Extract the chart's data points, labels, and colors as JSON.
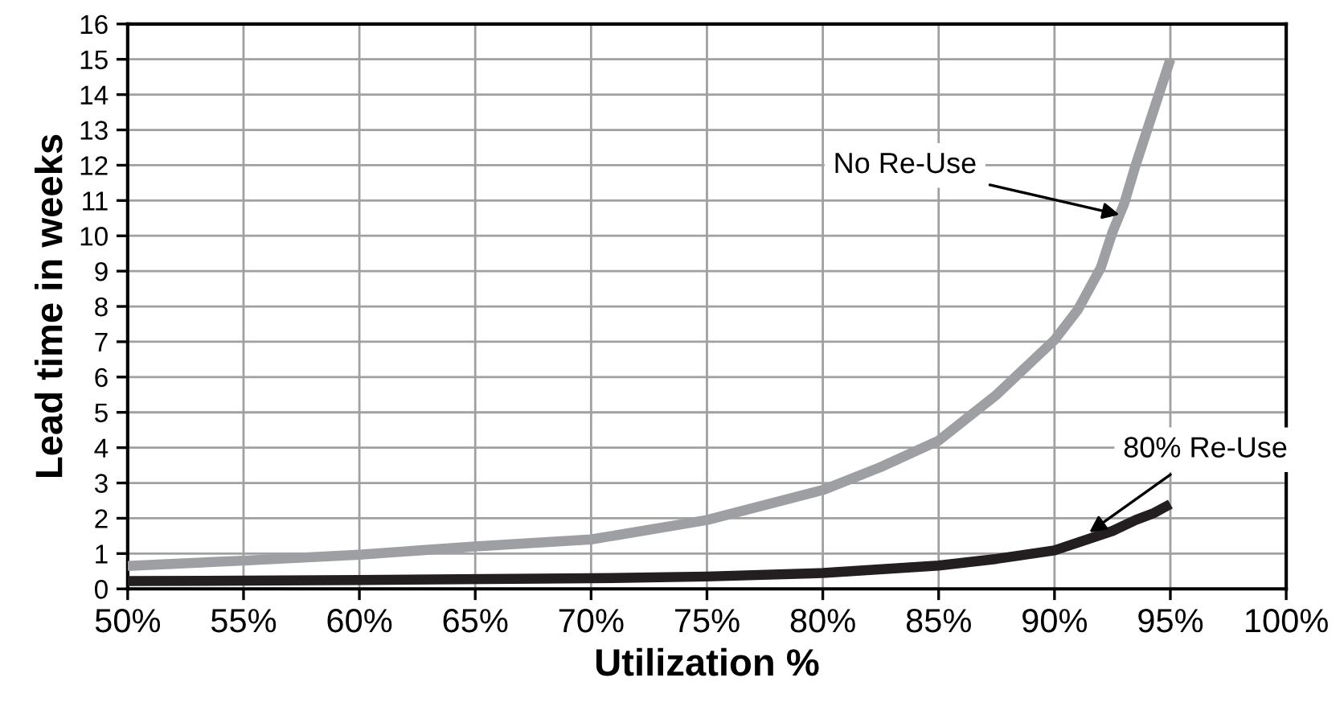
{
  "chart_data": {
    "type": "line",
    "xlabel": "Utilization %",
    "ylabel": "Lead time in weeks",
    "xlim": [
      50,
      100
    ],
    "ylim": [
      0,
      16
    ],
    "xticks": [
      {
        "value": 50,
        "label": "50%"
      },
      {
        "value": 55,
        "label": "55%"
      },
      {
        "value": 60,
        "label": "60%"
      },
      {
        "value": 65,
        "label": "65%"
      },
      {
        "value": 70,
        "label": "70%"
      },
      {
        "value": 75,
        "label": "75%"
      },
      {
        "value": 80,
        "label": "80%"
      },
      {
        "value": 85,
        "label": "85%"
      },
      {
        "value": 90,
        "label": "90%"
      },
      {
        "value": 95,
        "label": "95%"
      },
      {
        "value": 100,
        "label": "100%"
      }
    ],
    "yticks": [
      0,
      1,
      2,
      3,
      4,
      5,
      6,
      7,
      8,
      9,
      10,
      11,
      12,
      13,
      14,
      15,
      16
    ],
    "grid": true,
    "legend": false,
    "marker": "none",
    "line_style": "solid",
    "series": [
      {
        "color": "#9d9fa2",
        "x": [
          50,
          55,
          60,
          65,
          70,
          75,
          80,
          82.5,
          85,
          87.5,
          90,
          91,
          92,
          92.5,
          93,
          93.5,
          94,
          95
        ],
        "values": [
          0.65,
          0.8,
          0.97,
          1.2,
          1.4,
          1.95,
          2.8,
          3.45,
          4.2,
          5.5,
          7.05,
          7.9,
          9.1,
          10.1,
          10.9,
          12.0,
          13.0,
          15
        ]
      },
      {
        "color": "#231f20",
        "x": [
          50,
          60,
          70,
          75,
          80,
          85,
          87.5,
          90,
          92.5,
          93.5,
          94.3,
          95
        ],
        "values": [
          0.22,
          0.25,
          0.3,
          0.35,
          0.45,
          0.66,
          0.85,
          1.09,
          1.64,
          1.95,
          2.15,
          2.4
        ]
      }
    ],
    "annotations": [
      {
        "text": "No Re-Use",
        "x": 92.8,
        "y": 10.6
      },
      {
        "text": "80% Re-Use",
        "x": 91.5,
        "y": 1.6
      }
    ]
  }
}
